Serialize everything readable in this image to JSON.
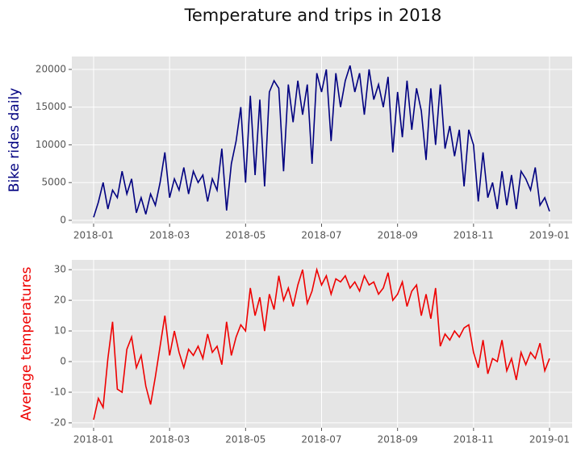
{
  "title": "Temperature and trips in 2018",
  "chart_data": [
    {
      "type": "line",
      "ylabel": "Bike rides daily",
      "color": "#000080",
      "label_color": "#000080",
      "ylim": [
        -430,
        21710
      ],
      "yticks": [
        0,
        5000,
        10000,
        15000,
        20000
      ],
      "xticks": [
        "2018-01",
        "2018-03",
        "2018-05",
        "2018-07",
        "2018-09",
        "2018-11",
        "2019-01"
      ],
      "grid": true,
      "values": [
        400,
        2400,
        5000,
        1500,
        4000,
        3000,
        6500,
        3500,
        5500,
        1000,
        3000,
        800,
        3500,
        2000,
        5000,
        9000,
        3000,
        5500,
        4000,
        7000,
        3500,
        6500,
        5000,
        6000,
        2500,
        5500,
        4000,
        9500,
        1300,
        7500,
        10500,
        15000,
        5000,
        16500,
        6000,
        16000,
        4500,
        17000,
        18500,
        17500,
        6500,
        18000,
        13000,
        18500,
        14000,
        18000,
        7500,
        19500,
        17000,
        20000,
        10500,
        19500,
        15000,
        18500,
        20500,
        17000,
        19500,
        14000,
        20000,
        16000,
        18000,
        15000,
        19000,
        9000,
        17000,
        11000,
        18500,
        12000,
        17500,
        14500,
        8000,
        17500,
        10000,
        18000,
        9500,
        12500,
        8500,
        12000,
        4500,
        12000,
        10000,
        2500,
        9000,
        3000,
        5000,
        1500,
        6500,
        2000,
        6000,
        1500,
        6500,
        5500,
        4000,
        7000,
        2000,
        3000,
        1200
      ]
    },
    {
      "type": "line",
      "ylabel": "Average temperatures",
      "color": "#ee0000",
      "label_color": "#ee0000",
      "ylim": [
        -21.6,
        33.2
      ],
      "yticks": [
        -20,
        -10,
        0,
        10,
        20,
        30
      ],
      "xticks": [
        "2018-01",
        "2018-03",
        "2018-05",
        "2018-07",
        "2018-09",
        "2018-11",
        "2019-01"
      ],
      "grid": true,
      "values": [
        -19,
        -12,
        -15,
        1,
        13,
        -9,
        -10,
        4,
        8,
        -2,
        2,
        -8,
        -14,
        -5,
        5,
        15,
        2,
        10,
        3,
        -2,
        4,
        2,
        5,
        1,
        9,
        3,
        5,
        -1,
        13,
        2,
        8,
        12,
        10,
        24,
        15,
        21,
        10,
        22,
        17,
        28,
        20,
        24,
        18,
        25,
        30,
        19,
        23,
        30,
        25,
        28,
        22,
        27,
        26,
        28,
        24,
        26,
        23,
        28,
        25,
        26,
        22,
        24,
        29,
        20,
        22,
        26,
        18,
        23,
        25,
        15,
        22,
        14,
        24,
        5,
        9,
        7,
        10,
        8,
        11,
        12,
        3,
        -2,
        7,
        -4,
        1,
        0,
        7,
        -3,
        1,
        -6,
        3,
        -1,
        3,
        1,
        6,
        -3,
        1
      ]
    }
  ]
}
